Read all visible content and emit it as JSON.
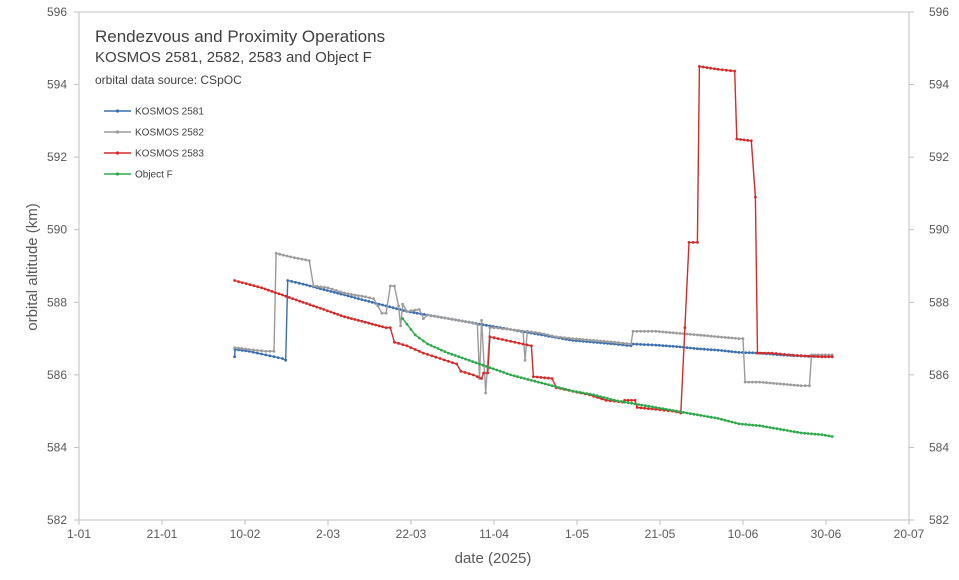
{
  "chart_data": {
    "type": "line",
    "title": "Rendezvous and Proximity Operations",
    "subtitle": "KOSMOS 2581, 2582, 2583 and Object F",
    "source": "orbital data source: CSpOC",
    "xlabel": "date (2025)",
    "ylabel": "orbital altitude (km)",
    "x_unit": "day of year 2025",
    "xlim": [
      1,
      201
    ],
    "ylim": [
      582,
      596
    ],
    "x_ticks": [
      {
        "day": 1,
        "label": "1-01"
      },
      {
        "day": 21,
        "label": "21-01"
      },
      {
        "day": 41,
        "label": "10-02"
      },
      {
        "day": 61,
        "label": "2-03"
      },
      {
        "day": 81,
        "label": "22-03"
      },
      {
        "day": 101,
        "label": "11-04"
      },
      {
        "day": 121,
        "label": "1-05"
      },
      {
        "day": 141,
        "label": "21-05"
      },
      {
        "day": 161,
        "label": "10-06"
      },
      {
        "day": 181,
        "label": "30-06"
      },
      {
        "day": 201,
        "label": "20-07"
      }
    ],
    "y_ticks": [
      {
        "value": 582,
        "label": "582"
      },
      {
        "value": 584,
        "label": "584"
      },
      {
        "value": 586,
        "label": "586"
      },
      {
        "value": 588,
        "label": "588"
      },
      {
        "value": 590,
        "label": "590"
      },
      {
        "value": 592,
        "label": "592"
      },
      {
        "value": 594,
        "label": "594"
      },
      {
        "value": 596,
        "label": "596"
      }
    ],
    "legend_position": "top-left",
    "series": [
      {
        "name": "KOSMOS 2581",
        "color": "#3a6fb0",
        "points": [
          [
            38.5,
            586.5
          ],
          [
            38.6,
            586.7
          ],
          [
            42,
            586.65
          ],
          [
            46,
            586.55
          ],
          [
            50,
            586.45
          ],
          [
            50.8,
            586.4
          ],
          [
            51.3,
            588.6
          ],
          [
            55,
            588.5
          ],
          [
            60,
            588.35
          ],
          [
            65,
            588.2
          ],
          [
            70,
            588.05
          ],
          [
            75,
            587.9
          ],
          [
            80,
            587.75
          ],
          [
            85,
            587.65
          ],
          [
            90,
            587.55
          ],
          [
            95,
            587.45
          ],
          [
            100,
            587.35
          ],
          [
            105,
            587.25
          ],
          [
            110,
            587.15
          ],
          [
            115,
            587.05
          ],
          [
            120,
            586.95
          ],
          [
            125,
            586.9
          ],
          [
            130,
            586.85
          ],
          [
            134,
            586.8
          ],
          [
            134.5,
            586.85
          ],
          [
            140,
            586.82
          ],
          [
            145,
            586.78
          ],
          [
            150,
            586.72
          ],
          [
            155,
            586.68
          ],
          [
            160,
            586.62
          ],
          [
            165,
            586.6
          ],
          [
            170,
            586.55
          ],
          [
            175,
            586.52
          ],
          [
            180,
            586.5
          ],
          [
            182.5,
            586.5
          ]
        ]
      },
      {
        "name": "KOSMOS 2582",
        "color": "#9b9b9b",
        "points": [
          [
            38.5,
            586.75
          ],
          [
            42,
            586.7
          ],
          [
            46,
            586.65
          ],
          [
            48,
            586.65
          ],
          [
            48.5,
            589.35
          ],
          [
            52,
            589.25
          ],
          [
            56.5,
            589.15
          ],
          [
            57.5,
            588.45
          ],
          [
            61,
            588.4
          ],
          [
            65,
            588.25
          ],
          [
            70,
            588.15
          ],
          [
            72,
            588.1
          ],
          [
            73,
            587.9
          ],
          [
            74,
            587.7
          ],
          [
            75,
            587.7
          ],
          [
            76,
            588.45
          ],
          [
            77,
            588.45
          ],
          [
            78,
            587.9
          ],
          [
            78.5,
            587.35
          ],
          [
            79,
            587.95
          ],
          [
            80,
            587.75
          ],
          [
            83,
            587.8
          ],
          [
            84,
            587.55
          ],
          [
            85,
            587.65
          ],
          [
            90,
            587.55
          ],
          [
            95,
            587.45
          ],
          [
            97,
            587.4
          ],
          [
            97.5,
            585.9
          ],
          [
            98,
            587.5
          ],
          [
            99,
            585.5
          ],
          [
            100,
            587.3
          ],
          [
            101,
            587.3
          ],
          [
            105,
            587.25
          ],
          [
            108,
            587.2
          ],
          [
            108.5,
            586.4
          ],
          [
            109,
            587.2
          ],
          [
            112,
            587.15
          ],
          [
            116,
            587.05
          ],
          [
            120,
            587.0
          ],
          [
            125,
            586.95
          ],
          [
            130,
            586.9
          ],
          [
            134,
            586.85
          ],
          [
            134.5,
            587.2
          ],
          [
            140,
            587.2
          ],
          [
            145,
            587.15
          ],
          [
            150,
            587.1
          ],
          [
            155,
            587.05
          ],
          [
            160,
            587.0
          ],
          [
            161,
            587.0
          ],
          [
            161.5,
            585.8
          ],
          [
            165,
            585.8
          ],
          [
            170,
            585.75
          ],
          [
            175,
            585.7
          ],
          [
            177,
            585.7
          ],
          [
            177.5,
            586.55
          ],
          [
            180,
            586.55
          ],
          [
            182.5,
            586.55
          ]
        ]
      },
      {
        "name": "KOSMOS 2583",
        "color": "#d42a2a",
        "points": [
          [
            38.5,
            588.6
          ],
          [
            45,
            588.4
          ],
          [
            50,
            588.2
          ],
          [
            55,
            588.0
          ],
          [
            60,
            587.8
          ],
          [
            65,
            587.6
          ],
          [
            70,
            587.45
          ],
          [
            75,
            587.3
          ],
          [
            76,
            587.3
          ],
          [
            77,
            586.9
          ],
          [
            80,
            586.8
          ],
          [
            84,
            586.6
          ],
          [
            88,
            586.45
          ],
          [
            92,
            586.3
          ],
          [
            93,
            586.1
          ],
          [
            96,
            586.0
          ],
          [
            98,
            585.9
          ],
          [
            98.5,
            586.05
          ],
          [
            99.5,
            586.05
          ],
          [
            100,
            587.05
          ],
          [
            104,
            586.95
          ],
          [
            108,
            586.85
          ],
          [
            110,
            586.8
          ],
          [
            110.5,
            585.95
          ],
          [
            115,
            585.9
          ],
          [
            116,
            585.65
          ],
          [
            120,
            585.55
          ],
          [
            124,
            585.45
          ],
          [
            128,
            585.3
          ],
          [
            132,
            585.25
          ],
          [
            132.5,
            585.3
          ],
          [
            135,
            585.3
          ],
          [
            135.5,
            585.1
          ],
          [
            140,
            585.05
          ],
          [
            144,
            585.0
          ],
          [
            146,
            584.95
          ],
          [
            148,
            589.65
          ],
          [
            150,
            589.65
          ],
          [
            150.5,
            594.5
          ],
          [
            155,
            594.42
          ],
          [
            159,
            594.37
          ],
          [
            159.5,
            592.5
          ],
          [
            163,
            592.45
          ],
          [
            164,
            590.9
          ],
          [
            164.5,
            586.6
          ],
          [
            168,
            586.6
          ],
          [
            172,
            586.55
          ],
          [
            176,
            586.52
          ],
          [
            180,
            586.5
          ],
          [
            182.5,
            586.5
          ]
        ]
      },
      {
        "name": "Object F",
        "color": "#2ea84a",
        "points": [
          [
            79,
            587.55
          ],
          [
            82,
            587.1
          ],
          [
            85,
            586.85
          ],
          [
            90,
            586.6
          ],
          [
            95,
            586.4
          ],
          [
            100,
            586.2
          ],
          [
            105,
            586.0
          ],
          [
            110,
            585.85
          ],
          [
            115,
            585.7
          ],
          [
            120,
            585.55
          ],
          [
            125,
            585.45
          ],
          [
            130,
            585.3
          ],
          [
            135,
            585.2
          ],
          [
            140,
            585.1
          ],
          [
            145,
            585.0
          ],
          [
            150,
            584.9
          ],
          [
            155,
            584.8
          ],
          [
            160,
            584.65
          ],
          [
            165,
            584.6
          ],
          [
            170,
            584.5
          ],
          [
            175,
            584.4
          ],
          [
            180,
            584.35
          ],
          [
            182.5,
            584.3
          ]
        ]
      }
    ]
  }
}
